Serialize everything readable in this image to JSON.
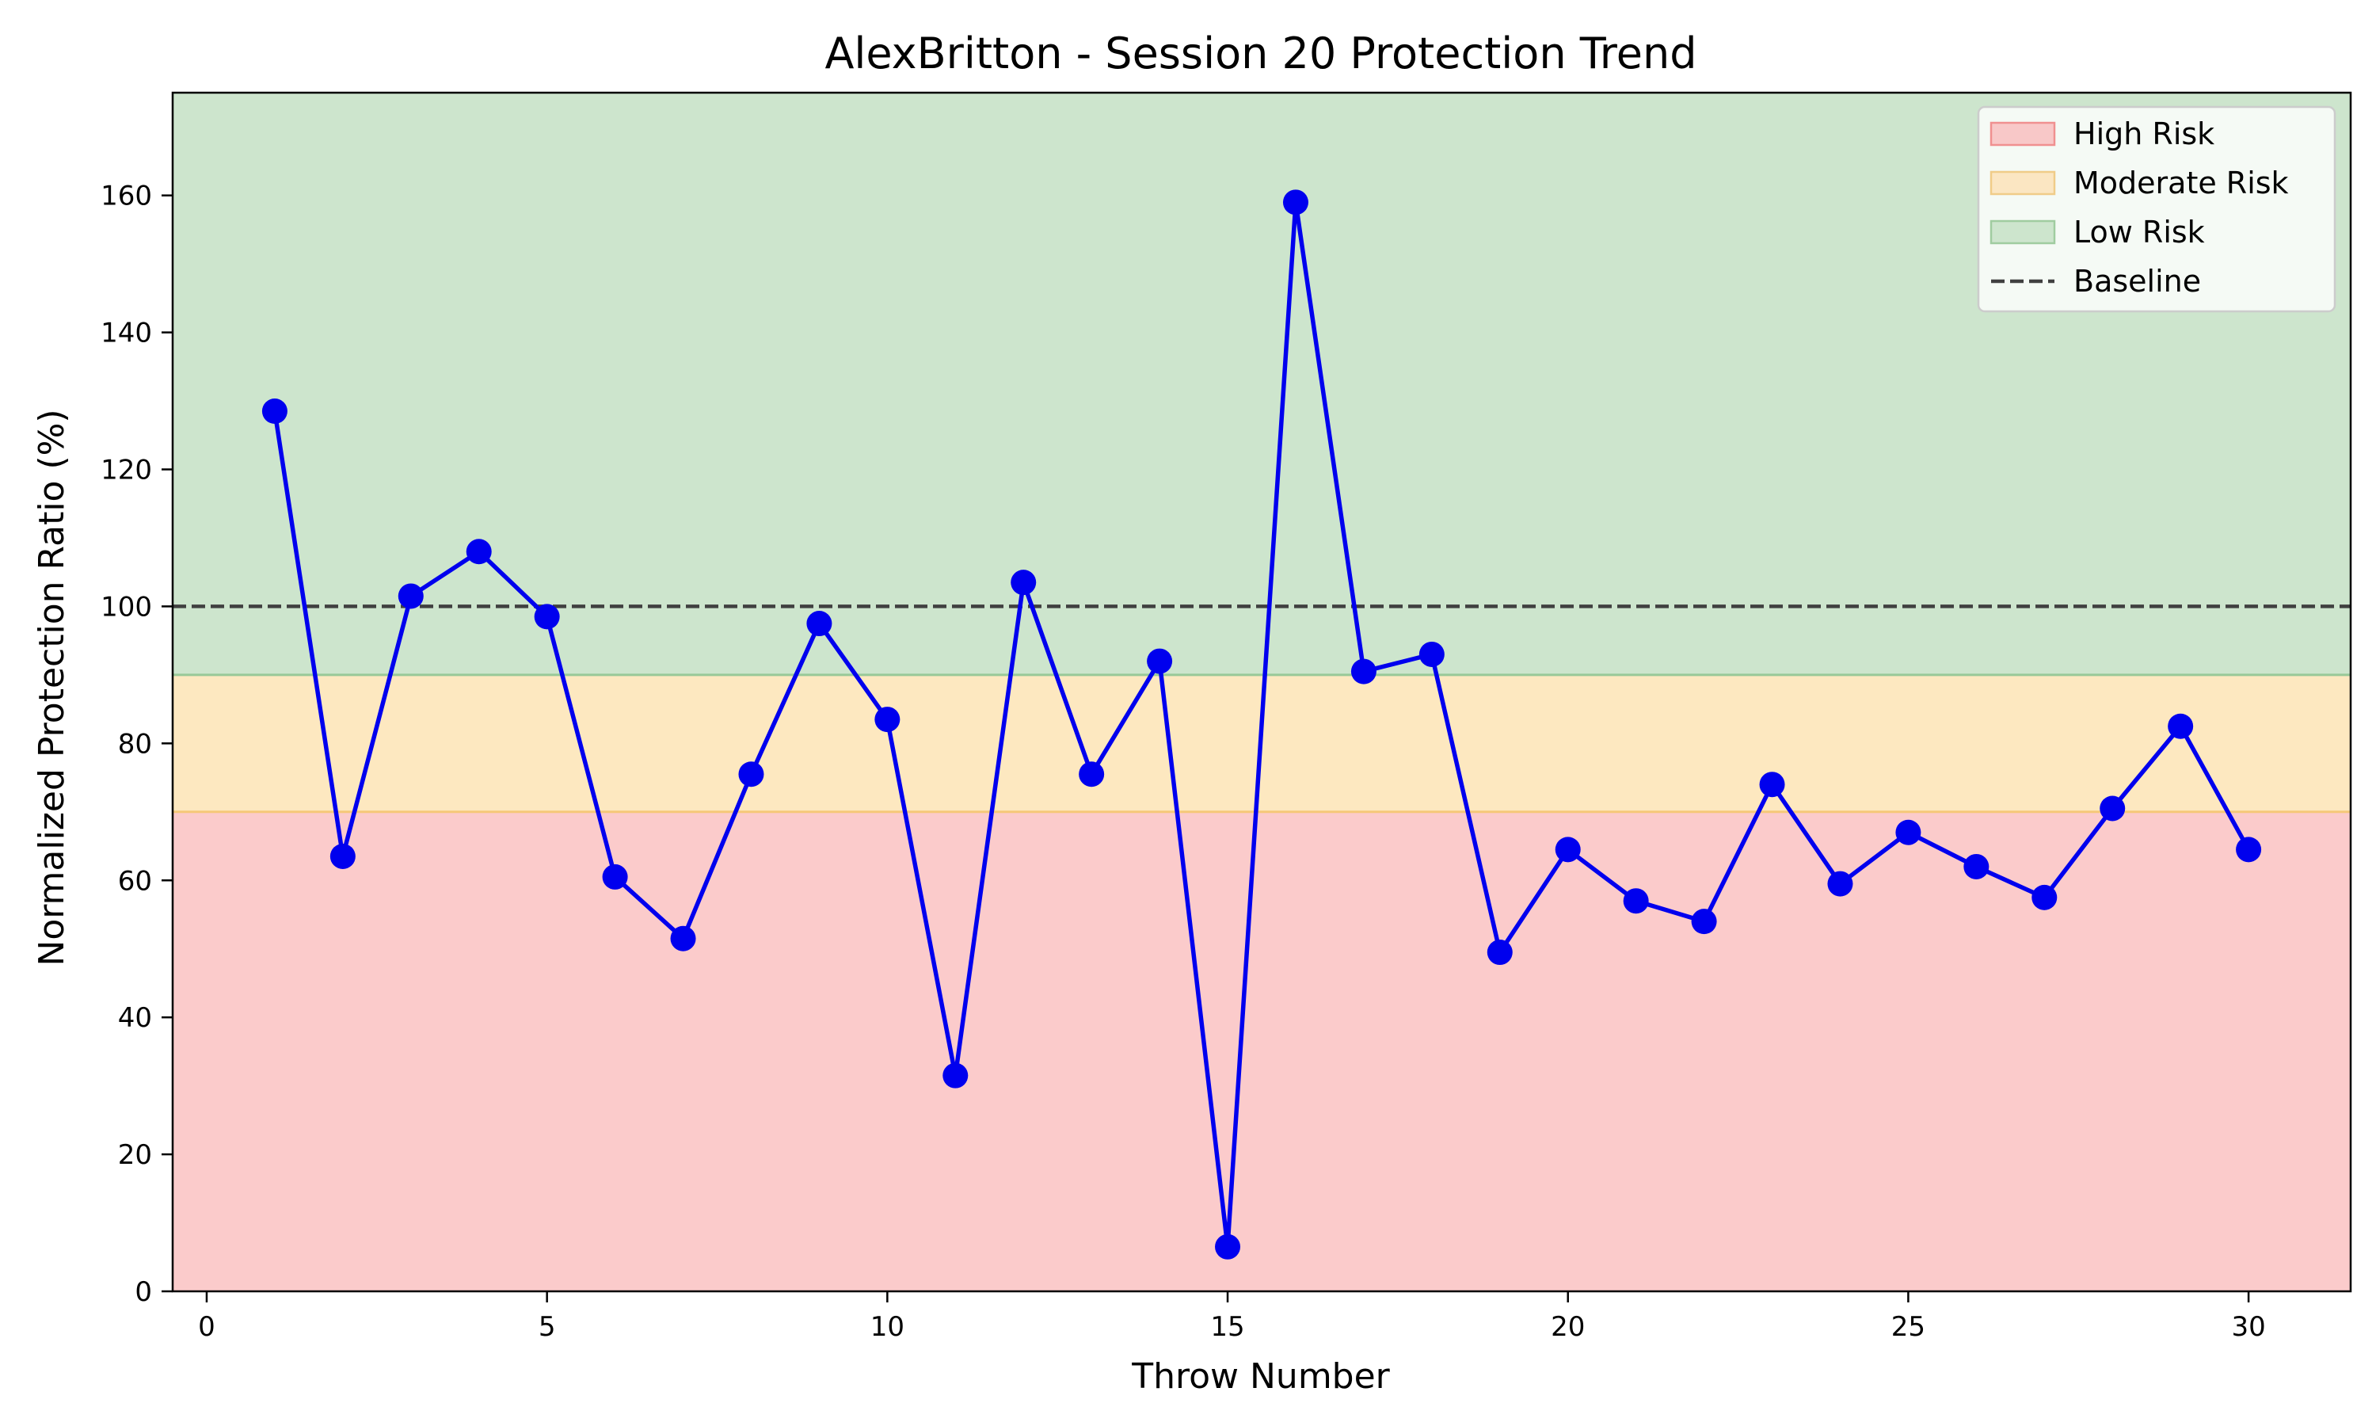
{
  "chart_data": {
    "type": "line",
    "title": "AlexBritton - Session 20 Protection Trend",
    "xlabel": "Throw Number",
    "ylabel": "Normalized Protection Ratio (%)",
    "xlim": [
      -0.5,
      31.5
    ],
    "ylim": [
      0,
      175
    ],
    "xticks": [
      0,
      5,
      10,
      15,
      20,
      25,
      30
    ],
    "yticks": [
      0,
      20,
      40,
      60,
      80,
      100,
      120,
      140,
      160
    ],
    "grid": false,
    "legend_position": "top-right",
    "bands": [
      {
        "name": "High Risk",
        "from": 0,
        "to": 70,
        "color": "#f8a0a0",
        "edge": "#f08080"
      },
      {
        "name": "Moderate Risk",
        "from": 70,
        "to": 90,
        "color": "#fde8c0",
        "edge": "#f5c878"
      },
      {
        "name": "Low Risk",
        "from": 90,
        "to": 175,
        "color": "#cde5cd",
        "edge": "#98c998"
      }
    ],
    "baseline": {
      "name": "Baseline",
      "value": 100,
      "color": "#404040"
    },
    "series": [
      {
        "color": "#0000ee",
        "x": [
          1,
          2,
          3,
          4,
          5,
          6,
          7,
          8,
          9,
          10,
          11,
          12,
          13,
          14,
          15,
          16,
          17,
          18,
          19,
          20,
          21,
          22,
          23,
          24,
          25,
          26,
          27,
          28,
          29,
          30
        ],
        "values": [
          128.5,
          63.5,
          101.5,
          108.0,
          98.5,
          60.5,
          51.5,
          75.5,
          97.5,
          83.5,
          31.5,
          103.5,
          75.5,
          92.0,
          6.5,
          159.0,
          90.5,
          93.0,
          49.5,
          64.5,
          57.0,
          54.0,
          74.0,
          59.5,
          67.0,
          62.0,
          57.5,
          70.5,
          82.5,
          64.5
        ]
      }
    ],
    "legend": [
      {
        "label": "High Risk",
        "kind": "patch",
        "color": "#f8c8c8",
        "edge": "#f09090"
      },
      {
        "label": "Moderate Risk",
        "kind": "patch",
        "color": "#fbe6c2",
        "edge": "#f0cc88"
      },
      {
        "label": "Low Risk",
        "kind": "patch",
        "color": "#cde5cd",
        "edge": "#a0cca0"
      },
      {
        "label": "Baseline",
        "kind": "dashed-line",
        "color": "#404040"
      }
    ]
  }
}
